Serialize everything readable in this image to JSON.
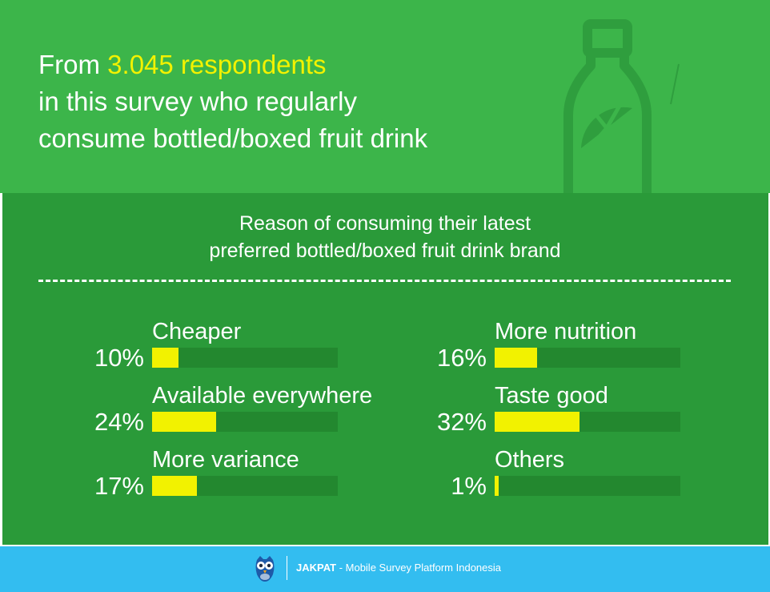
{
  "header": {
    "line1_prefix": "From ",
    "line1_highlight": "3.045 respondents",
    "line2": "in this survey who regularly",
    "line3": "consume bottled/boxed fruit drink"
  },
  "chart_data": {
    "type": "bar",
    "title_line1": "Reason of consuming their latest",
    "title_line2": "preferred bottled/boxed fruit drink brand",
    "categories": [
      "Cheaper",
      "Available everywhere",
      "More variance",
      "More nutrition",
      "Taste good",
      "Others"
    ],
    "values": [
      10,
      24,
      17,
      16,
      32,
      1
    ],
    "value_labels": [
      "10%",
      "24%",
      "17%",
      "16%",
      "32%",
      "1%"
    ],
    "scale_max": 70,
    "colors": {
      "fill": "#f2f200",
      "track": "#23882f"
    }
  },
  "footer": {
    "brand": "JAKPAT",
    "tagline": " - Mobile Survey Platform Indonesia"
  },
  "colors": {
    "top_bg": "#3cb54a",
    "panel_bg": "#2a9a39",
    "footer_bg": "#33bdf0",
    "highlight": "#f2f200"
  }
}
